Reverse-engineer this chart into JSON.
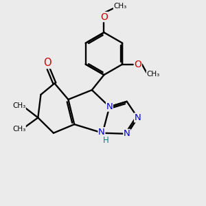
{
  "bg": "#ebebeb",
  "bond_color": "#000000",
  "N_color": "#0000cc",
  "O_color": "#cc0000",
  "NH_color": "#008080",
  "bond_lw": 1.7,
  "fig_size": [
    3.0,
    3.0
  ],
  "dpi": 100,
  "xlim": [
    0,
    10
  ],
  "ylim": [
    0,
    10
  ]
}
